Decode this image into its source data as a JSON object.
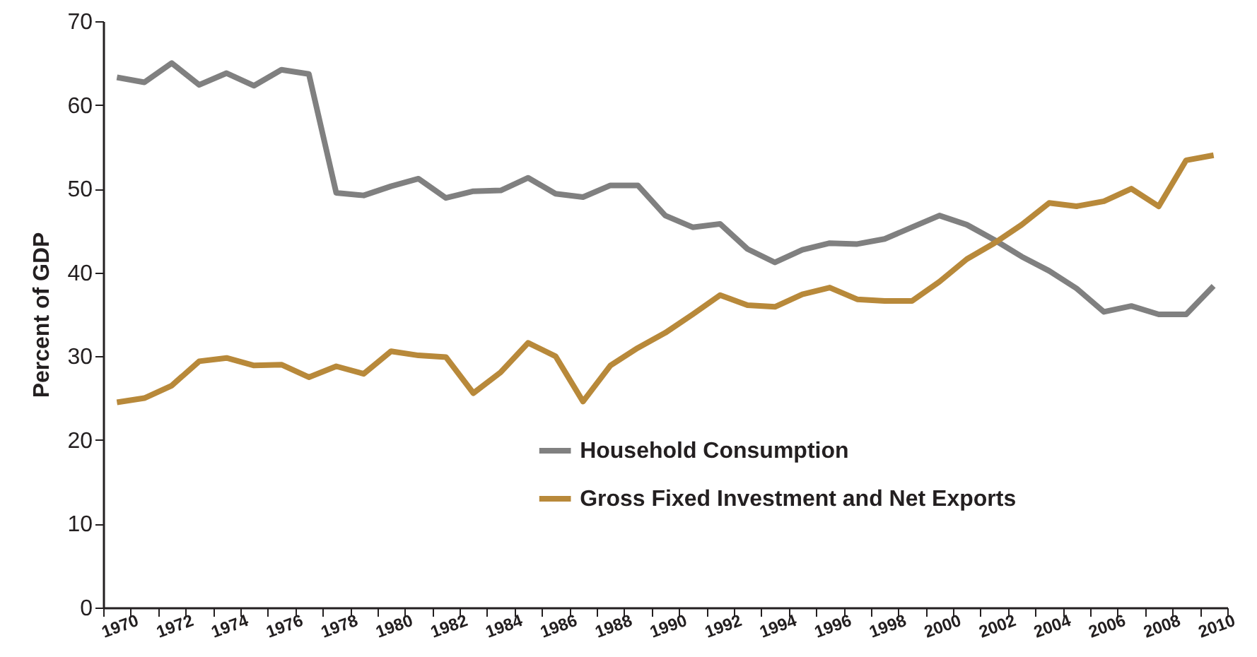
{
  "chart_data": {
    "type": "line",
    "ylabel": "Percent of GDP",
    "categories": [
      "1970",
      null,
      "1972",
      null,
      "1974",
      null,
      "1976",
      null,
      "1978",
      null,
      "1980",
      null,
      "1982",
      null,
      "1984",
      null,
      "1986",
      null,
      "1988",
      null,
      "1990",
      null,
      "1992",
      null,
      "1994",
      null,
      "1996",
      null,
      "1998",
      null,
      "2000",
      null,
      "2002",
      null,
      "2004",
      null,
      "2006",
      null,
      "2008",
      null,
      "2010"
    ],
    "series": [
      {
        "name": "Household Consumption",
        "color": "#808080",
        "values": [
          63.3,
          62.7,
          65,
          62.4,
          63.8,
          62.3,
          64.2,
          63.7,
          49.5,
          49.2,
          50.3,
          51.2,
          48.9,
          49.7,
          49.8,
          51.3,
          49.4,
          49.0,
          50.4,
          50.4,
          46.8,
          45.4,
          45.8,
          42.8,
          41.2,
          42.7,
          43.5,
          43.4,
          44.0,
          45.4,
          46.8,
          45.7,
          43.9,
          41.9,
          40.2,
          38.1,
          35.3,
          36.0,
          35.0,
          35.0,
          38.4
        ]
      },
      {
        "name": "Gross Fixed Investment and Net Exports",
        "color": "#b8893a",
        "values": [
          24.5,
          25.0,
          26.5,
          29.4,
          29.8,
          28.9,
          29.0,
          27.5,
          28.8,
          27.9,
          30.6,
          30.1,
          29.9,
          25.6,
          28.1,
          31.6,
          30.0,
          24.6,
          28.9,
          31.0,
          32.8,
          35.0,
          37.3,
          36.1,
          35.9,
          37.4,
          38.2,
          36.8,
          36.6,
          36.6,
          38.9,
          41.6,
          43.5,
          45.7,
          48.3,
          47.9,
          48.5,
          50.0,
          47.9,
          53.4,
          54.0
        ]
      }
    ],
    "ylim": [
      0,
      70
    ],
    "yticks": [
      0,
      10,
      20,
      30,
      40,
      50,
      60,
      70
    ],
    "grid": false,
    "legend": "bottom",
    "marker": "none",
    "line_style": "solid"
  }
}
